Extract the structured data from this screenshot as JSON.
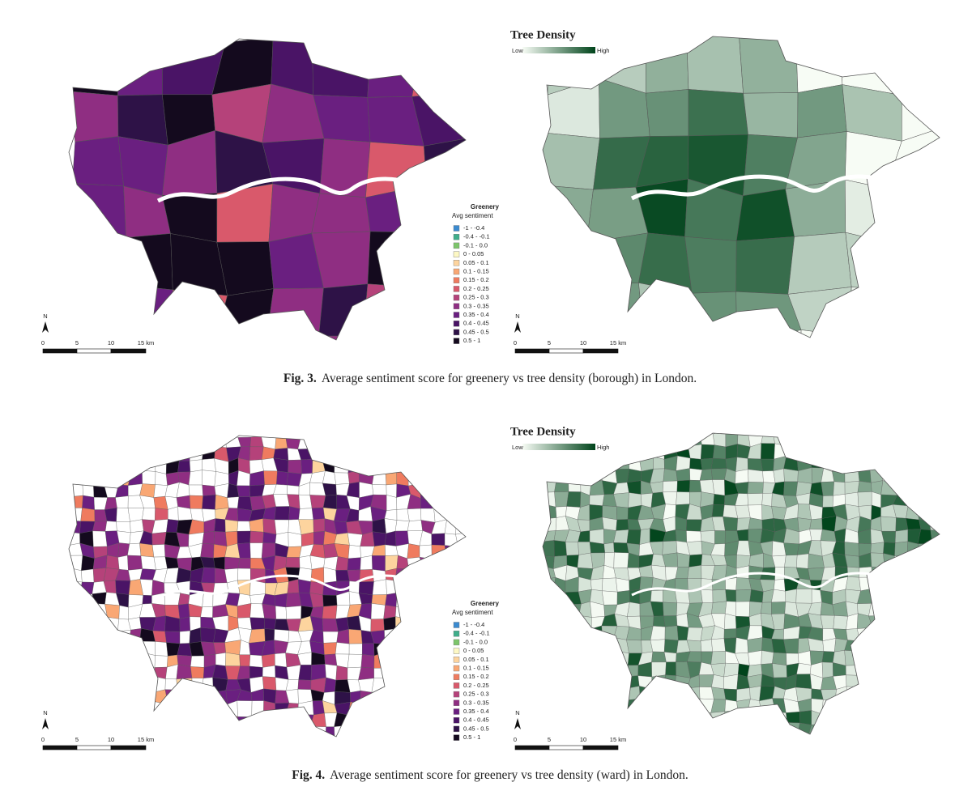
{
  "figures": [
    {
      "label": "Fig. 3.",
      "caption": "Average sentiment score for greenery vs tree density (borough) in London.",
      "left_map": {
        "legend": {
          "title": "Greenery",
          "subtitle": "Avg sentiment",
          "items": [
            {
              "label": "-1 - -0.4",
              "color": "#3b8bd0"
            },
            {
              "label": "-0.4 - -0.1",
              "color": "#3fae8a"
            },
            {
              "label": "-0.1 - 0.0",
              "color": "#7cc56a"
            },
            {
              "label": "0 - 0.05",
              "color": "#fdf8c4"
            },
            {
              "label": "0.05 - 0.1",
              "color": "#fdd49e"
            },
            {
              "label": "0.1 - 0.15",
              "color": "#f9a774"
            },
            {
              "label": "0.15 - 0.2",
              "color": "#ef7b5f"
            },
            {
              "label": "0.2 - 0.25",
              "color": "#d9596b"
            },
            {
              "label": "0.25 - 0.3",
              "color": "#b5427a"
            },
            {
              "label": "0.3 - 0.35",
              "color": "#8f2e82"
            },
            {
              "label": "0.35 - 0.4",
              "color": "#6a1f80"
            },
            {
              "label": "0.4 - 0.45",
              "color": "#4a1466"
            },
            {
              "label": "0.45 - 0.5",
              "color": "#2e1247"
            },
            {
              "label": "0.5 - 1",
              "color": "#140a1e"
            }
          ]
        },
        "scale_bar": {
          "north": "N",
          "ticks": [
            "0",
            "5",
            "10",
            "15 km"
          ]
        }
      },
      "right_map": {
        "legend": {
          "title": "Tree Density",
          "low": "Low",
          "high": "High",
          "gradient": [
            "#f7fcf5",
            "#00441b"
          ]
        },
        "scale_bar": {
          "north": "N",
          "ticks": [
            "0",
            "5",
            "10",
            "15 km"
          ]
        }
      }
    },
    {
      "label": "Fig. 4.",
      "caption": "Average sentiment score for greenery vs tree density (ward) in London.",
      "left_map": {
        "legend": {
          "title": "Greenery",
          "subtitle": "Avg sentiment",
          "items": [
            {
              "label": "-1 - -0.4",
              "color": "#3b8bd0"
            },
            {
              "label": "-0.4 - -0.1",
              "color": "#3fae8a"
            },
            {
              "label": "-0.1 - 0.0",
              "color": "#7cc56a"
            },
            {
              "label": "0 - 0.05",
              "color": "#fdf8c4"
            },
            {
              "label": "0.05 - 0.1",
              "color": "#fdd49e"
            },
            {
              "label": "0.1 - 0.15",
              "color": "#f9a774"
            },
            {
              "label": "0.15 - 0.2",
              "color": "#ef7b5f"
            },
            {
              "label": "0.2 - 0.25",
              "color": "#d9596b"
            },
            {
              "label": "0.25 - 0.3",
              "color": "#b5427a"
            },
            {
              "label": "0.3 - 0.35",
              "color": "#8f2e82"
            },
            {
              "label": "0.35 - 0.4",
              "color": "#6a1f80"
            },
            {
              "label": "0.4 - 0.45",
              "color": "#4a1466"
            },
            {
              "label": "0.45 - 0.5",
              "color": "#2e1247"
            },
            {
              "label": "0.5 - 1",
              "color": "#140a1e"
            }
          ]
        },
        "scale_bar": {
          "north": "N",
          "ticks": [
            "0",
            "5",
            "10",
            "15 km"
          ]
        }
      },
      "right_map": {
        "legend": {
          "title": "Tree Density",
          "low": "Low",
          "high": "High",
          "gradient": [
            "#f7fcf5",
            "#00441b"
          ]
        },
        "scale_bar": {
          "north": "N",
          "ticks": [
            "0",
            "5",
            "10",
            "15 km"
          ]
        }
      }
    }
  ]
}
